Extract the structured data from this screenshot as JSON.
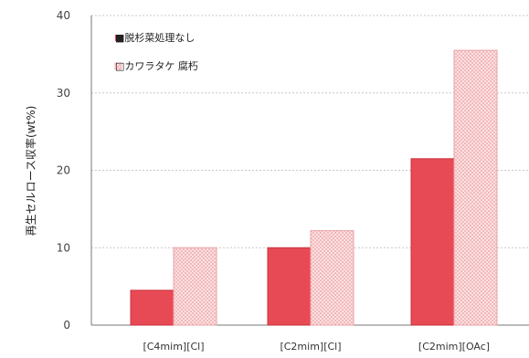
{
  "chart_data": {
    "type": "bar",
    "categories": [
      "[C4mim][Cl]",
      "[C2mim][Cl]",
      "[C2mim][OAc]"
    ],
    "series": [
      {
        "name": "■脱杉菜処理なし",
        "values": [
          4.5,
          10.0,
          21.5
        ],
        "color": "#e84a55"
      },
      {
        "name": "□カワラタケ 腐朽",
        "values": [
          10.0,
          12.2,
          35.5
        ],
        "color": "#f9d3d4"
      }
    ],
    "ylabel": "再生セルロース収率(wt%)",
    "yticks": [
      0,
      10,
      20,
      30,
      40
    ],
    "ylim": [
      0,
      40
    ],
    "grid": true,
    "legend_position": "top-left"
  }
}
